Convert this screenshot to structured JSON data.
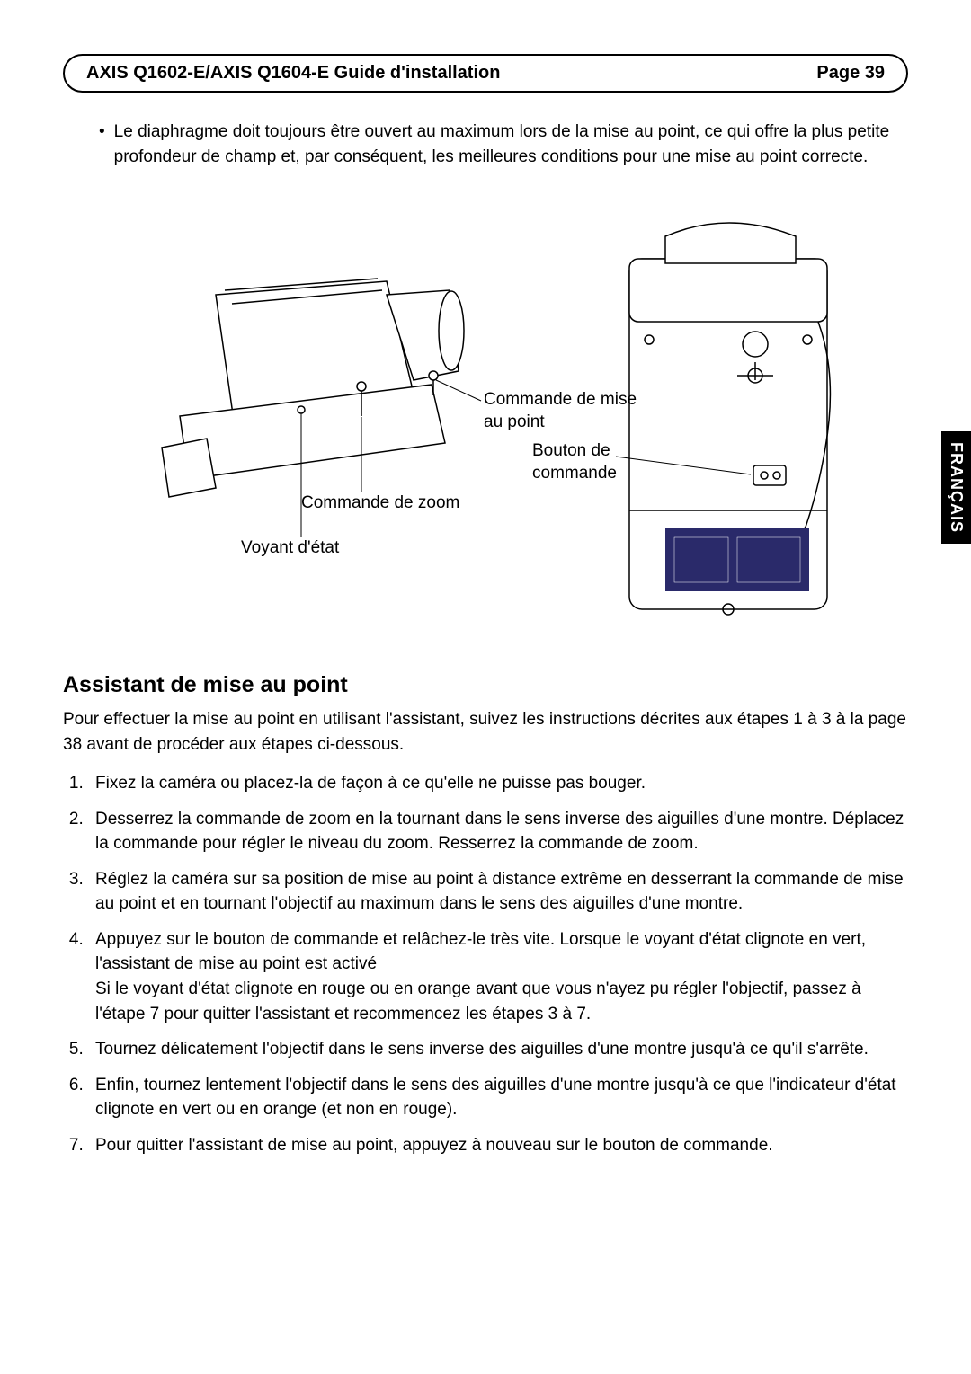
{
  "header": {
    "title": "AXIS Q1602-E/AXIS Q1604-E Guide d'installation",
    "page_label": "Page 39"
  },
  "side_tab": "FRANÇAIS",
  "bullet": {
    "mark": "•",
    "text": "Le diaphragme doit toujours être ouvert au maximum lors de la mise au point, ce qui offre la plus petite profondeur de champ et, par conséquent, les meilleures conditions pour une mise au point correcte."
  },
  "diagram": {
    "labels": {
      "focus_puller": "Commande de mise au point",
      "control_button": "Bouton de commande",
      "zoom_puller": "Commande de zoom",
      "status_led": "Voyant d'état"
    },
    "styling": {
      "stroke": "#000000",
      "fill": "#ffffff",
      "label_fontsize": 19,
      "line_width": 1
    }
  },
  "section": {
    "title": "Assistant de mise au point",
    "intro": "Pour effectuer la mise au point en utilisant l'assistant, suivez les instructions décrites aux étapes 1 à 3 à la page  38 avant de procéder aux étapes ci-dessous.",
    "steps": [
      "Fixez la caméra ou placez-la de façon à ce qu'elle ne puisse pas bouger.",
      "Desserrez la commande de zoom en la tournant dans le sens inverse des aiguilles d'une montre. Déplacez la commande pour régler le niveau du zoom. Resserrez la commande de zoom.",
      "Réglez la caméra sur sa position de mise au point à distance extrême en desserrant la commande de mise au point et en tournant l'objectif au maximum dans le sens des aiguilles d'une montre.",
      "Appuyez sur le bouton de commande et relâchez-le très vite. Lorsque le voyant d'état clignote en vert, l'assistant de mise au point est activé\nSi le voyant d'état clignote en rouge ou en orange avant que vous n'ayez pu régler l'objectif, passez à l'étape 7 pour quitter l'assistant et recommencez les étapes 3 à 7.",
      "Tournez délicatement l'objectif dans le sens inverse des aiguilles d'une montre jusqu'à ce qu'il s'arrête.",
      "Enfin, tournez lentement l'objectif dans le sens des aiguilles d'une montre jusqu'à ce que l'indicateur d'état clignote en vert ou en orange (et non en rouge).",
      "Pour quitter l'assistant de mise au point, appuyez à nouveau sur le bouton de commande."
    ]
  },
  "colors": {
    "text": "#000000",
    "background": "#ffffff"
  },
  "typography": {
    "base_fontsize": 19,
    "title_fontsize": 25,
    "header_fontsize": 20,
    "line_height": 1.45
  }
}
